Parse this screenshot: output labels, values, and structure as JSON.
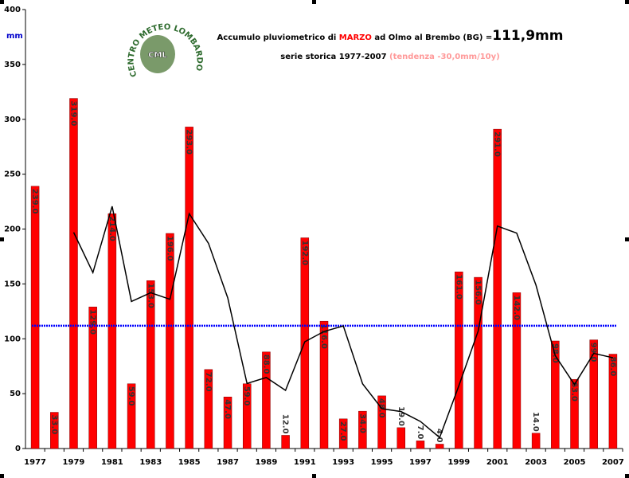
{
  "chart_data": {
    "type": "bar",
    "title": {
      "parts": [
        "Accumulo pluviometrico di ",
        "MARZO",
        " ad Olmo al Brembo (BG) =",
        "111,9mm"
      ]
    },
    "subtitle": {
      "parts": [
        "serie storica 1977-2007 ",
        "(tendenza -30,0mm/10y)"
      ]
    },
    "y_label": "mm",
    "annotations": [
      "CENTRO METEO LOMBARDO",
      "CML"
    ],
    "categories": [
      "1977",
      null,
      "1979",
      null,
      "1981",
      null,
      "1983",
      null,
      "1985",
      null,
      "1987",
      null,
      "1989",
      null,
      "1991",
      null,
      "1993",
      null,
      "1995",
      null,
      "1997",
      null,
      "1999",
      null,
      "2001",
      null,
      "2003",
      null,
      "2005",
      null,
      "2007"
    ],
    "values": [
      239,
      33,
      319,
      129,
      214,
      59,
      153,
      196,
      293,
      72,
      47,
      59,
      88,
      12,
      192,
      116,
      27,
      34,
      48,
      19,
      7,
      4,
      161,
      156,
      291,
      142,
      14,
      98,
      63,
      99,
      86
    ],
    "value_labels": [
      "239.0",
      "33.0",
      "319.0",
      "129.0",
      "214.0",
      "59.0",
      "153.0",
      "196.0",
      "293.0",
      "72.0",
      "47.0",
      "59.0",
      "88.0",
      "12.0",
      "192.0",
      "116.0",
      "27.0",
      "34.0",
      "48.0",
      "19.0",
      "7.0",
      "4.0",
      "161.0",
      "156.0",
      "291.0",
      "142.0",
      "14.0",
      "98.0",
      "63.0",
      "99.0",
      "86.0"
    ],
    "color": "#ff0000",
    "moving_average": {
      "color": "#000000",
      "values": [
        null,
        null,
        197.0,
        160.3,
        220.7,
        134.0,
        142.0,
        136.0,
        214.0,
        187.0,
        137.3,
        59.3,
        64.7,
        53.0,
        97.3,
        106.7,
        111.7,
        59.0,
        36.3,
        33.7,
        24.7,
        10.0,
        57.3,
        107.0,
        202.7,
        196.3,
        149.0,
        84.7,
        58.3,
        86.7,
        82.7
      ]
    },
    "mean": {
      "color": "#0000ff",
      "value": 111.9
    },
    "ylim": [
      0,
      400
    ],
    "yticks": [
      0,
      50,
      100,
      150,
      200,
      250,
      300,
      350,
      400
    ],
    "grid": false
  }
}
